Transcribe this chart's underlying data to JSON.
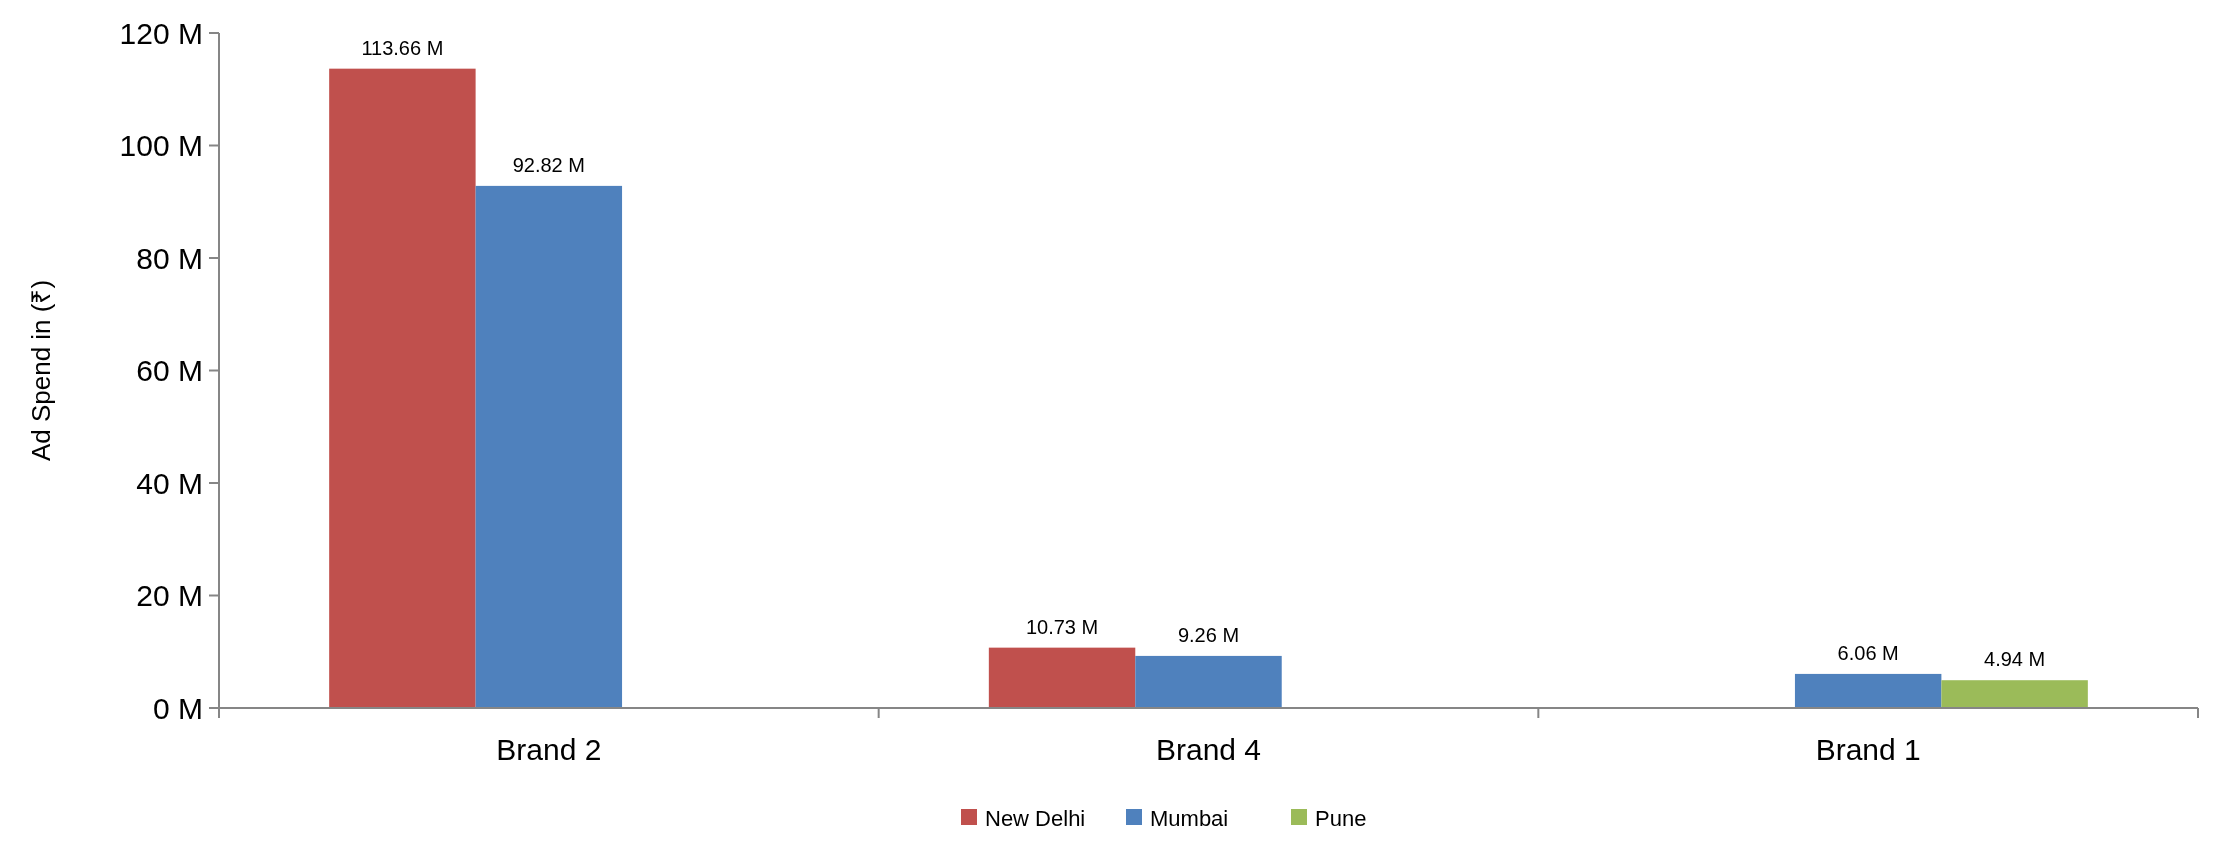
{
  "chart_data": {
    "type": "bar",
    "ylabel": "Ad Spend in (₹)",
    "categories": [
      "Brand 2",
      "Brand 4",
      "Brand 1"
    ],
    "series": [
      {
        "name": "New Delhi",
        "color": "#c0504d",
        "values": [
          113.66,
          10.73,
          null
        ],
        "value_labels": [
          "113.66 M",
          "10.73 M",
          null
        ]
      },
      {
        "name": "Mumbai",
        "color": "#4f81bd",
        "values": [
          92.82,
          9.26,
          6.06
        ],
        "value_labels": [
          "92.82 M",
          "9.26 M",
          "6.06 M"
        ]
      },
      {
        "name": "Pune",
        "color": "#9bbb59",
        "values": [
          null,
          null,
          4.94
        ],
        "value_labels": [
          null,
          null,
          "4.94 M"
        ]
      }
    ],
    "ylim": [
      0,
      120
    ],
    "yticks": [
      {
        "value": 0,
        "label": "0 M"
      },
      {
        "value": 20,
        "label": "20 M"
      },
      {
        "value": 40,
        "label": "40 M"
      },
      {
        "value": 60,
        "label": "60 M"
      },
      {
        "value": 80,
        "label": "80 M"
      },
      {
        "value": 100,
        "label": "100 M"
      },
      {
        "value": 120,
        "label": "120 M"
      }
    ],
    "grid": false,
    "legend": "bottom"
  }
}
